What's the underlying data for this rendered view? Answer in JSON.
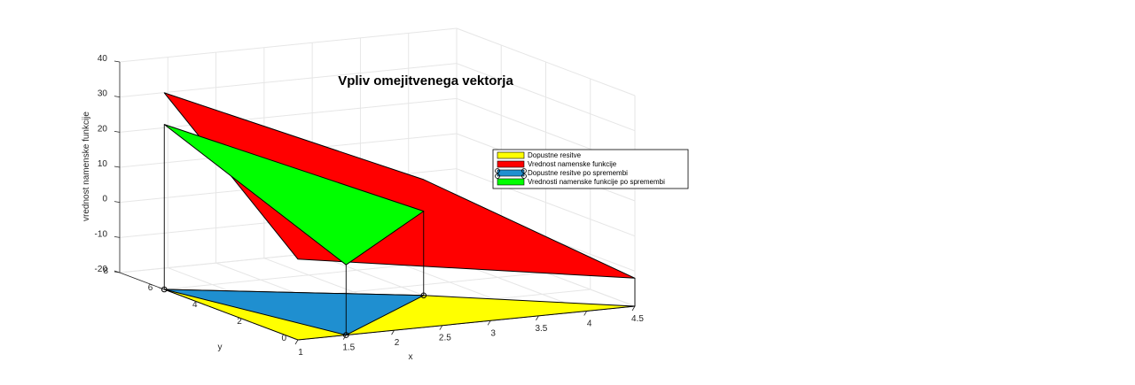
{
  "chart_data": {
    "type": "3d-surface",
    "title": "Vpliv omejitvenega vektorja",
    "xlabel": "x",
    "ylabel": "y",
    "zlabel": "vrednost namenske funkcije",
    "xlim": [
      1,
      4.5
    ],
    "ylim": [
      0,
      8
    ],
    "zlim": [
      -20,
      40
    ],
    "x_ticks": [
      "1",
      "1.5",
      "2",
      "2.5",
      "3",
      "3.5",
      "4",
      "4.5"
    ],
    "y_ticks": [
      "0",
      "2",
      "4",
      "6",
      "8"
    ],
    "z_ticks": [
      "-20",
      "-10",
      "0",
      "10",
      "20",
      "30",
      "40"
    ],
    "grid": true,
    "legend_position": "right",
    "series": [
      {
        "name": "Dopustne resitve",
        "color": "#ffff00",
        "vertices": [
          [
            1,
            6,
            -20
          ],
          [
            3,
            3,
            -20
          ],
          [
            4.5,
            0,
            -20
          ],
          [
            1,
            0,
            -20
          ]
        ]
      },
      {
        "name": "Vrednost namenske funkcije",
        "color": "#ff0000",
        "vertices": [
          [
            1,
            6,
            36
          ],
          [
            3,
            3,
            13
          ],
          [
            4.5,
            0,
            -12
          ],
          [
            1,
            0,
            3
          ]
        ]
      },
      {
        "name": "Dopustne resitve po spremembi",
        "color": "#1f8fd0",
        "vertices": [
          [
            1,
            6,
            -20
          ],
          [
            1.5,
            0,
            -20
          ],
          [
            3,
            3,
            -20
          ]
        ]
      },
      {
        "name": "Vrednosti namenske funkcije po spremembi",
        "color": "#00ff00",
        "vertices": [
          [
            1,
            6,
            27
          ],
          [
            1.5,
            0,
            0
          ],
          [
            3,
            3,
            4
          ]
        ]
      }
    ]
  }
}
